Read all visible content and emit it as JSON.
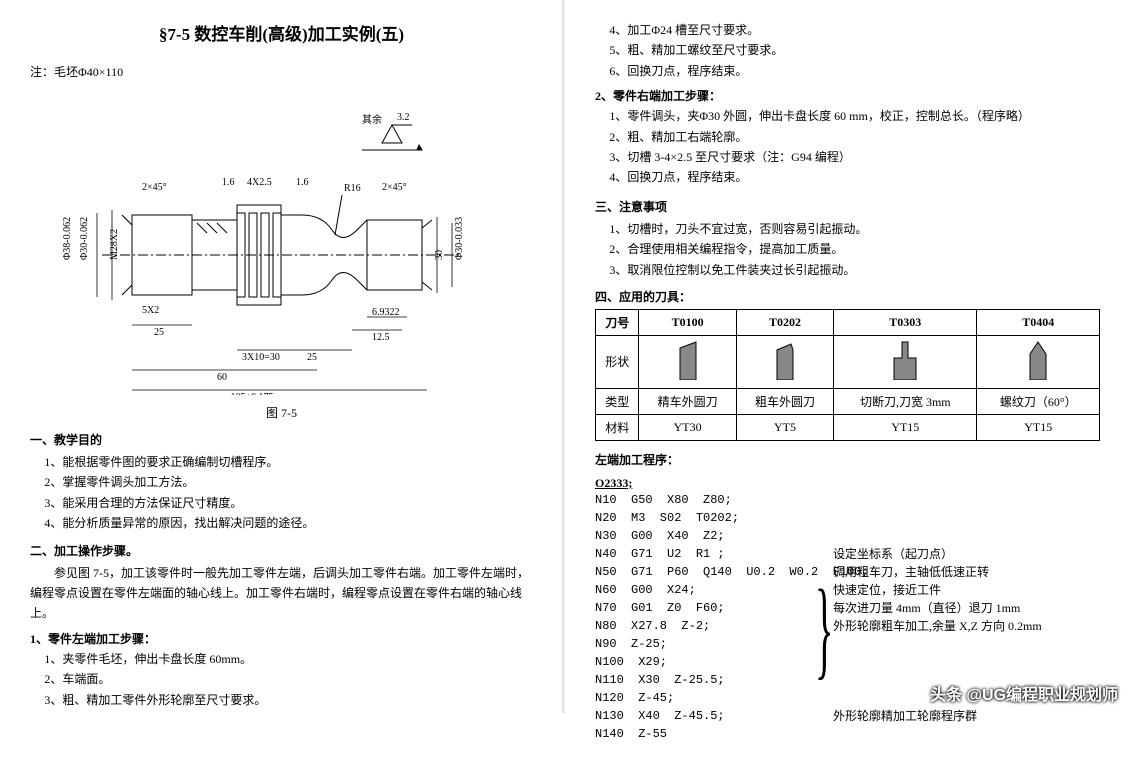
{
  "left": {
    "title": "§7-5  数控车削(高级)加工实例(五)",
    "note": "注：毛坯Φ40×110",
    "caption": "图 7-5",
    "sec1_title": "一、教学目的",
    "sec1_items": [
      "1、能根据零件图的要求正确编制切槽程序。",
      "2、掌握零件调头加工方法。",
      "3、能采用合理的方法保证尺寸精度。",
      "4、能分析质量异常的原因，找出解决问题的途径。"
    ],
    "sec2_title": "二、加工操作步骤。",
    "sec2_body": "参见图 7-5，加工该零件时一般先加工零件左端，后调头加工零件右端。加工零件左端时，编程零点设置在零件左端面的轴心线上。加工零件右端时，编程零点设置在零件右端的轴心线上。",
    "sec2_sub1": "1、零件左端加工步骤：",
    "sec2_sub1_items": [
      "1、夹零件毛坯，伸出卡盘长度 60mm。",
      "2、车端面。",
      "3、粗、精加工零件外形轮廓至尺寸要求。"
    ],
    "diagram": {
      "labels": {
        "top_right_ra": "3.2",
        "top_right_rest": "其余",
        "r16": "R16",
        "chamfer_left": "2×45°",
        "chamfer_right": "2×45°",
        "dim_16": "1.6",
        "groove": "4X2.5",
        "d38": "Φ38-0.062",
        "d30l": "Φ30-0.062",
        "m28": "M28X2",
        "d30r": "Φ30-0.033",
        "dim30h": "30",
        "dim_5x2": "5X2",
        "dim_25a": "25",
        "dim_3x10": "3X10=30",
        "dim_25b": "25",
        "dim_125": "12.5",
        "dim_69": "6.9322",
        "dim_60": "60",
        "dim_105": "105±0.175"
      }
    }
  },
  "right": {
    "top_items": [
      "4、加工Φ24 槽至尺寸要求。",
      "5、粗、精加工螺纹至尺寸要求。",
      "6、回换刀点，程序结束。"
    ],
    "sub2": "2、零件右端加工步骤：",
    "sub2_items": [
      "1、零件调头，夹Φ30 外圆，伸出卡盘长度 60 mm，校正，控制总长。（程序略）",
      "2、粗、精加工右端轮廓。",
      "3、切槽 3-4×2.5 至尺寸要求（注：G94 编程）",
      "4、回换刀点，程序结束。"
    ],
    "sec3_title": "三、注意事项",
    "sec3_items": [
      "1、切槽时，刀头不宜过宽，否则容易引起振动。",
      "2、合理使用相关编程指令，提高加工质量。",
      "3、取消限位控制以免工件装夹过长引起振动。"
    ],
    "sec4_title": "四、应用的刀具：",
    "table": {
      "headers": [
        "刀号",
        "T0100",
        "T0202",
        "T0303",
        "T0404"
      ],
      "row_shape": "形状",
      "row_type": [
        "类型",
        "精车外圆刀",
        "粗车外圆刀",
        "切断刀,刀宽 3mm",
        "螺纹刀（60°）"
      ],
      "row_mat": [
        "材料",
        "YT30",
        "YT5",
        "YT15",
        "YT15"
      ]
    },
    "prog_title": "左端加工程序：",
    "prog_num": "O2333;",
    "prog_lines": [
      "N10  G50  X80  Z80;",
      "N20  M3  S02  T0202;",
      "N30  G00  X40  Z2;",
      "N40  G71  U2  R1 ;",
      "N50  G71  P60  Q140  U0.2  W0.2  F100;",
      "N60  G00  X24;",
      "N70  G01  Z0  F60;",
      "N80  X27.8  Z-2;",
      "N90  Z-25;",
      "N100  X29;",
      "N110  X30  Z-25.5;",
      "N120  Z-45;",
      "N130  X40  Z-45.5;",
      "N140  Z-55"
    ],
    "prog_notes": [
      "设定坐标系（起刀点）",
      "调用粗车刀，主轴低低速正转",
      "快速定位，接近工件",
      "每次进刀量 4mm（直径）退刀 1mm",
      "外形轮廓粗车加工,余量 X,Z 方向 0.2mm",
      "",
      "",
      "",
      "",
      "外形轮廓精加工轮廓程序群",
      "",
      "",
      "",
      ""
    ]
  },
  "watermark": "头条 @UG编程职业规划师"
}
